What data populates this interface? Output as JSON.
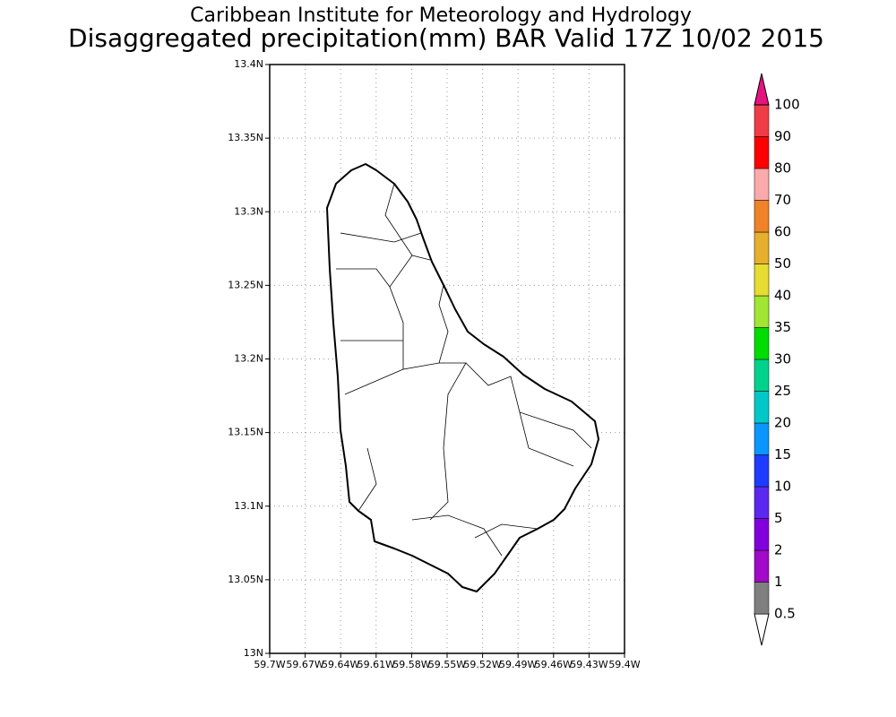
{
  "header": {
    "title": "Caribbean Institute for Meteorology and Hydrology",
    "subtitle": "Disaggregated precipitation(mm) BAR Valid 17Z 10/02 2015"
  },
  "map": {
    "xlim": [
      -59.7,
      -59.4
    ],
    "ylim": [
      13,
      13.4
    ],
    "xticks": [
      {
        "value": -59.7,
        "label": "59.7W"
      },
      {
        "value": -59.67,
        "label": "59.67W"
      },
      {
        "value": -59.64,
        "label": "59.64W"
      },
      {
        "value": -59.61,
        "label": "59.61W"
      },
      {
        "value": -59.58,
        "label": "59.58W"
      },
      {
        "value": -59.55,
        "label": "59.55W"
      },
      {
        "value": -59.52,
        "label": "59.52W"
      },
      {
        "value": -59.49,
        "label": "59.49W"
      },
      {
        "value": -59.46,
        "label": "59.46W"
      },
      {
        "value": -59.43,
        "label": "59.43W"
      },
      {
        "value": -59.4,
        "label": "59.4W"
      }
    ],
    "yticks": [
      {
        "value": 13,
        "label": "13N"
      },
      {
        "value": 13.05,
        "label": "13.05N"
      },
      {
        "value": 13.1,
        "label": "13.1N"
      },
      {
        "value": 13.15,
        "label": "13.15N"
      },
      {
        "value": 13.2,
        "label": "13.2N"
      },
      {
        "value": 13.25,
        "label": "13.25N"
      },
      {
        "value": 13.3,
        "label": "13.3N"
      },
      {
        "value": 13.35,
        "label": "13.35N"
      },
      {
        "value": 13.4,
        "label": "13.4N"
      }
    ],
    "grid": true
  },
  "colorbar": {
    "levels": [
      0.5,
      1,
      2,
      5,
      10,
      15,
      20,
      25,
      30,
      35,
      40,
      50,
      60,
      70,
      80,
      90,
      100
    ],
    "colors": [
      "#ffffff",
      "#7f7f7f",
      "#a00ac8",
      "#8200dc",
      "#5a28f0",
      "#1e3cff",
      "#0a96ff",
      "#00c8c8",
      "#00d28c",
      "#00dc00",
      "#a0e632",
      "#e6dc32",
      "#e6af2d",
      "#f08228",
      "#faaaaa",
      "#ff0000",
      "#f03c46",
      "#e6147f"
    ]
  }
}
